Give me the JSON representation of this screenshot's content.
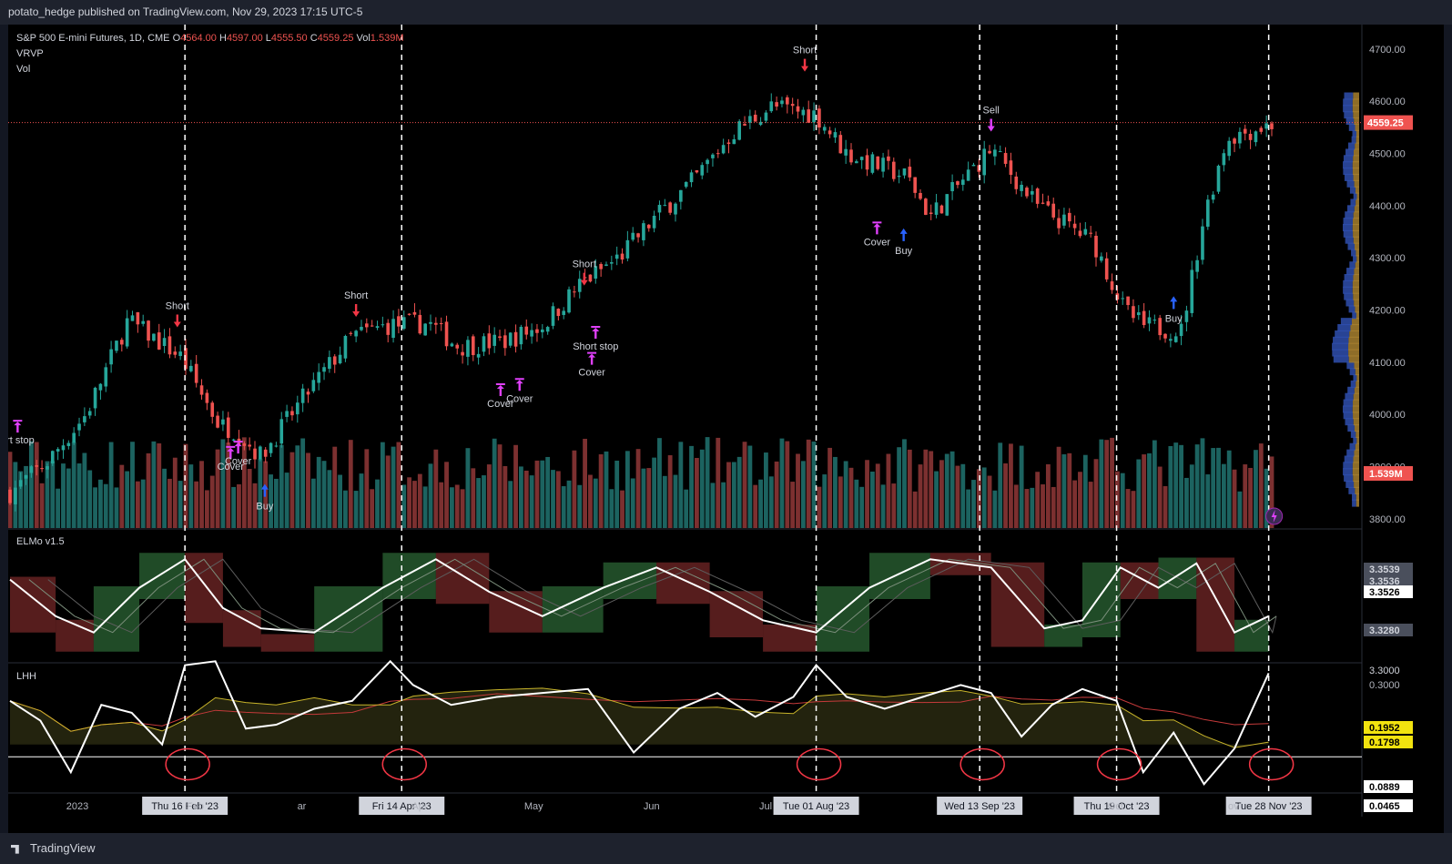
{
  "header": {
    "publisher": "potato_hedge published on TradingView.com, Nov 29, 2023 17:15 UTC-5"
  },
  "legend": {
    "symbol": "S&P 500 E-mini Futures, 1D, CME",
    "o_label": "O",
    "open": "4564.00",
    "h_label": "H",
    "high": "4597.00",
    "l_label": "L",
    "low": "4555.50",
    "c_label": "C",
    "close": "4559.25",
    "vol_label": "Vol",
    "volume": "1.539M",
    "vrvp": "VRVP",
    "vol": "Vol"
  },
  "panes": {
    "elmo": "ELMo v1.5",
    "lhh": "LHH"
  },
  "footer": {
    "brand": "TradingView"
  },
  "colors": {
    "up": "#26a69a",
    "down": "#ef5350",
    "signal": "#e040fb",
    "buy": "#2962ff",
    "price_line": "#ef5350"
  },
  "chart_data": {
    "type": "candlestick",
    "title": "S&P 500 E-mini Futures, 1D, CME",
    "price_axis": {
      "ticks": [
        4700,
        4600,
        4500,
        4400,
        4300,
        4200,
        4100,
        4000,
        3900,
        3800
      ],
      "labels": [
        "4700.00",
        "4600.00",
        "4500.00",
        "4400.00",
        "4300.00",
        "4200.00",
        "4100.00",
        "4000.00",
        "3900.00",
        "3800.00"
      ],
      "range": [
        3770,
        4740
      ]
    },
    "last_price": {
      "value": 4559.25,
      "label": "4559.25"
    },
    "last_volume": {
      "label": "1.539M"
    },
    "x_axis": {
      "month_labels": [
        "2023",
        "Feb",
        "ar",
        "Apr",
        "May",
        "Jun",
        "Jul",
        "Oct",
        "ov"
      ],
      "month_days": [
        0,
        31,
        59,
        90,
        120,
        151,
        181,
        273,
        304
      ]
    },
    "price_path": {
      "days": [
        0,
        10,
        20,
        31,
        45,
        55,
        59,
        66,
        70,
        78,
        90,
        99,
        110,
        118,
        130,
        140,
        150,
        160,
        170,
        180,
        190,
        200,
        212,
        220,
        236,
        242,
        252,
        258,
        270,
        285,
        293,
        298,
        308,
        314,
        320,
        333
      ],
      "close": [
        3850,
        3910,
        4000,
        4180,
        4110,
        3980,
        3970,
        3920,
        3960,
        4040,
        4150,
        4170,
        4175,
        4130,
        4140,
        4170,
        4250,
        4300,
        4380,
        4450,
        4540,
        4590,
        4575,
        4500,
        4455,
        4380,
        4460,
        4510,
        4400,
        4330,
        4200,
        4170,
        4160,
        4380,
        4530,
        4559
      ]
    },
    "vertical_markers": [
      {
        "day": 46,
        "label": "Thu 16 Feb '23"
      },
      {
        "day": 103,
        "label": "Fri 14 Apr '23"
      },
      {
        "day": 212,
        "label": "Tue 01 Aug '23"
      },
      {
        "day": 255,
        "label": "Wed 13 Sep '23"
      },
      {
        "day": 291,
        "label": "Thu 19 Oct '23"
      },
      {
        "day": 331,
        "label": "Tue 28 Nov '23"
      }
    ],
    "signals": [
      {
        "day": 2,
        "price": 4000,
        "label": "ort stop",
        "kind": "cover"
      },
      {
        "day": 44,
        "price": 4160,
        "label": "Short",
        "kind": "short"
      },
      {
        "day": 58,
        "price": 3950,
        "label": "Cover",
        "kind": "cover"
      },
      {
        "day": 60,
        "price": 3960,
        "label": "Cover",
        "kind": "cover"
      },
      {
        "day": 67,
        "price": 3870,
        "label": "Buy",
        "kind": "buy"
      },
      {
        "day": 91,
        "price": 4180,
        "label": "Short",
        "kind": "short"
      },
      {
        "day": 129,
        "price": 4070,
        "label": "Cover",
        "kind": "cover"
      },
      {
        "day": 134,
        "price": 4080,
        "label": "Cover",
        "kind": "cover"
      },
      {
        "day": 151,
        "price": 4240,
        "label": "Short",
        "kind": "short"
      },
      {
        "day": 154,
        "price": 4180,
        "label": "Short stop",
        "kind": "cover"
      },
      {
        "day": 153,
        "price": 4130,
        "label": "Cover",
        "kind": "cover"
      },
      {
        "day": 209,
        "price": 4650,
        "label": "Short",
        "kind": "short"
      },
      {
        "day": 228,
        "price": 4380,
        "label": "Cover",
        "kind": "cover"
      },
      {
        "day": 235,
        "price": 4360,
        "label": "Buy",
        "kind": "buy"
      },
      {
        "day": 258,
        "price": 4535,
        "label": "Sell",
        "kind": "sell"
      },
      {
        "day": 306,
        "price": 4230,
        "label": "Buy",
        "kind": "buy"
      }
    ],
    "elmo": {
      "name": "ELMo v1.5",
      "axis_labels": [
        "3.3539",
        "3.3536",
        "3.3526",
        "3.3280",
        "3.3000"
      ],
      "days": [
        0,
        12,
        22,
        34,
        46,
        56,
        66,
        80,
        98,
        112,
        126,
        140,
        156,
        170,
        184,
        198,
        212,
        226,
        242,
        258,
        272,
        282,
        292,
        302,
        312,
        322,
        331
      ],
      "line": [
        0.7,
        0.25,
        0.05,
        0.6,
        0.95,
        0.35,
        0.1,
        0.05,
        0.6,
        0.95,
        0.55,
        0.25,
        0.6,
        0.85,
        0.55,
        0.2,
        0.05,
        0.6,
        0.95,
        0.85,
        0.1,
        0.2,
        0.85,
        0.6,
        0.9,
        0.05,
        0.25
      ]
    },
    "lhh": {
      "name": "LHH",
      "axis_labels": [
        "0.3000",
        "0.1952",
        "0.1798",
        "0.0889",
        "0.0465"
      ],
      "days": [
        0,
        8,
        16,
        24,
        32,
        40,
        46,
        54,
        62,
        70,
        80,
        90,
        100,
        106,
        116,
        128,
        140,
        152,
        164,
        176,
        186,
        196,
        206,
        212,
        220,
        230,
        240,
        250,
        258,
        266,
        274,
        282,
        291,
        298,
        306,
        314,
        322,
        331
      ],
      "line": [
        0.23,
        0.18,
        0.05,
        0.22,
        0.2,
        0.12,
        0.32,
        0.33,
        0.16,
        0.17,
        0.21,
        0.23,
        0.33,
        0.27,
        0.22,
        0.24,
        0.25,
        0.26,
        0.1,
        0.21,
        0.25,
        0.19,
        0.24,
        0.32,
        0.24,
        0.21,
        0.24,
        0.27,
        0.25,
        0.14,
        0.22,
        0.26,
        0.23,
        0.05,
        0.15,
        0.02,
        0.11,
        0.3
      ],
      "baseline": 0.0889,
      "range": [
        0.0,
        0.31
      ]
    }
  }
}
